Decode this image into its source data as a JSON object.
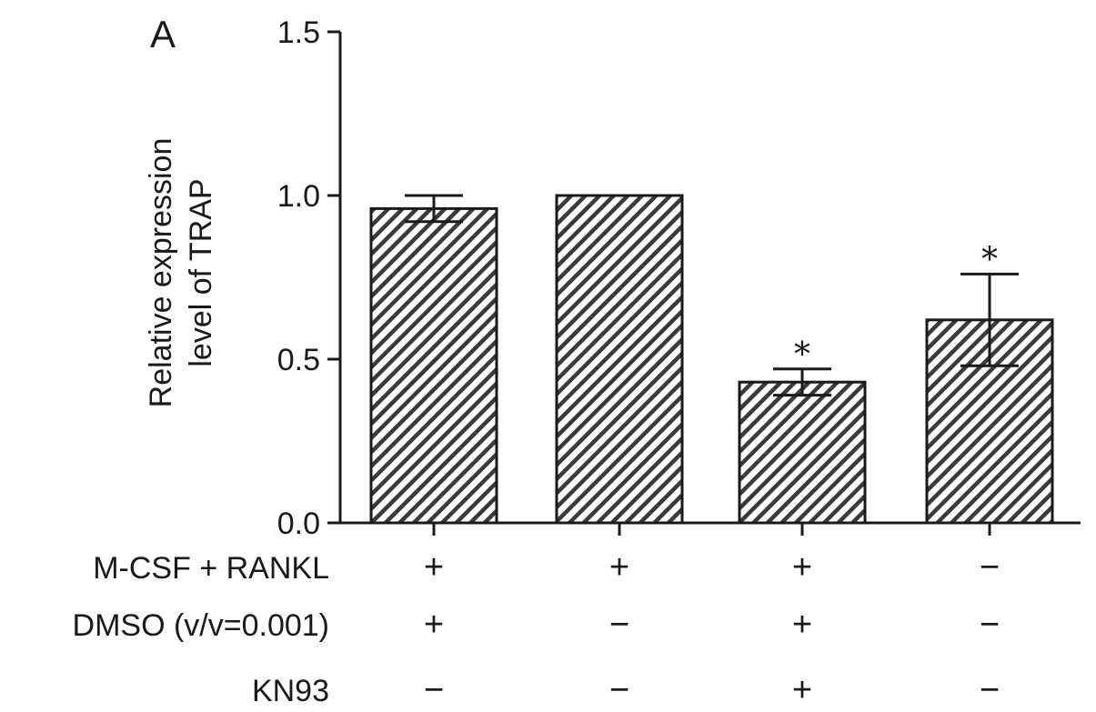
{
  "panel_label": "A",
  "chart_data": {
    "type": "bar",
    "title": "",
    "xlabel": "",
    "ylabel_lines": [
      "Relative expression",
      "level of TRAP"
    ],
    "ylim": [
      0,
      1.5
    ],
    "yticks": [
      0.0,
      0.5,
      1.0,
      1.5
    ],
    "ytick_labels": [
      "0.0",
      "0.5",
      "1.0",
      "1.5"
    ],
    "grid": false,
    "bar_fill": "diagonal hatch, dark gray",
    "bars": [
      {
        "value": 0.96,
        "error": 0.04,
        "significance": ""
      },
      {
        "value": 1.0,
        "error": 0.0,
        "significance": ""
      },
      {
        "value": 0.43,
        "error": 0.04,
        "significance": "*"
      },
      {
        "value": 0.62,
        "error": 0.14,
        "significance": "*"
      }
    ],
    "conditions": [
      {
        "label": "M-CSF + RANKL",
        "values": [
          "+",
          "+",
          "+",
          "−"
        ]
      },
      {
        "label": "DMSO (v/v=0.001)",
        "values": [
          "+",
          "−",
          "+",
          "−"
        ]
      },
      {
        "label": "KN93",
        "values": [
          "−",
          "−",
          "+",
          "−"
        ]
      }
    ]
  }
}
